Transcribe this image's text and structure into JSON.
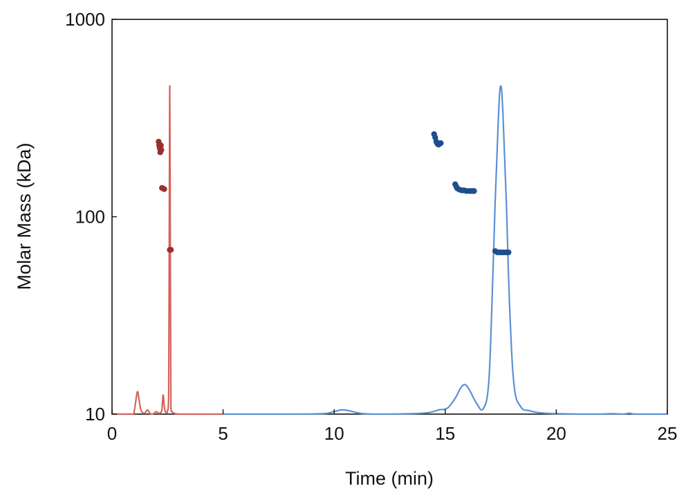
{
  "chart_data": {
    "type": "line",
    "xlabel": "Time (min)",
    "ylabel": "Molar Mass (kDa)",
    "xlim": [
      0,
      25
    ],
    "ylim": [
      10,
      1000
    ],
    "yscale": "log",
    "grid": false,
    "legend": "none",
    "x_ticks": [
      0,
      5,
      10,
      15,
      20,
      25
    ],
    "x_tick_labels": [
      "0",
      "5",
      "10",
      "15",
      "20",
      "25"
    ],
    "y_ticks": [
      10,
      100,
      1000
    ],
    "y_tick_labels": [
      "10",
      "100",
      "1000"
    ],
    "series": [
      {
        "kind": "trace",
        "color": "#d4625c",
        "x": [
          0,
          0.9,
          1.0,
          1.1,
          1.15,
          1.2,
          1.3,
          1.45,
          1.6,
          1.7,
          1.8,
          1.9,
          2.0,
          2.1,
          2.2,
          2.25,
          2.3,
          2.35,
          2.4,
          2.45,
          2.5,
          2.55,
          2.58,
          2.6,
          2.62,
          2.65,
          2.7,
          2.8,
          3.0,
          3.5,
          4.0,
          5.0
        ],
        "y": [
          10,
          10,
          10.4,
          12.3,
          13.0,
          12.2,
          10.5,
          10.1,
          10.5,
          10.1,
          10.0,
          10.1,
          10.3,
          10.1,
          10.2,
          10.6,
          12.5,
          11.0,
          10.3,
          10.2,
          10.4,
          12.5,
          110,
          460,
          110,
          11.0,
          10.3,
          10.1,
          10.0,
          10.0,
          10.0,
          10.0
        ]
      },
      {
        "kind": "trace",
        "color": "#5b8fd4",
        "x": [
          5,
          8,
          9.5,
          10,
          10.3,
          10.6,
          10.9,
          11.3,
          12,
          13.5,
          14.3,
          14.7,
          15.0,
          15.2,
          15.5,
          15.7,
          15.9,
          16.1,
          16.4,
          16.7,
          16.95,
          17.1,
          17.25,
          17.4,
          17.5,
          17.6,
          17.75,
          17.9,
          18.1,
          18.4,
          18.8,
          19.5,
          21,
          22,
          22.5,
          23,
          23.3,
          23.6,
          25
        ],
        "y": [
          10,
          10,
          10.05,
          10.3,
          10.5,
          10.45,
          10.25,
          10.05,
          10,
          10.05,
          10.2,
          10.5,
          10.6,
          11.0,
          12.3,
          13.6,
          14.1,
          13.2,
          11.4,
          10.6,
          14.0,
          35,
          120,
          330,
          460,
          330,
          120,
          35,
          14,
          10.9,
          10.4,
          10.1,
          10,
          10,
          10.05,
          10,
          10.1,
          10,
          10
        ]
      },
      {
        "kind": "molar_mass",
        "color": "#9b2f2d",
        "points": [
          [
            2.1,
            240
          ],
          [
            2.12,
            230
          ],
          [
            2.15,
            222
          ],
          [
            2.17,
            212
          ],
          [
            2.2,
            230
          ],
          [
            2.22,
            218
          ],
          [
            2.25,
            140
          ],
          [
            2.3,
            139
          ],
          [
            2.35,
            138
          ],
          [
            2.6,
            68
          ],
          [
            2.65,
            68
          ]
        ]
      },
      {
        "kind": "molar_mass",
        "color": "#1f4f8a",
        "points": [
          [
            14.5,
            262
          ],
          [
            14.55,
            252
          ],
          [
            14.6,
            240
          ],
          [
            14.65,
            234
          ],
          [
            14.7,
            232
          ],
          [
            14.75,
            234
          ],
          [
            14.8,
            236
          ],
          [
            15.45,
            146
          ],
          [
            15.5,
            142
          ],
          [
            15.55,
            139
          ],
          [
            15.65,
            137
          ],
          [
            15.75,
            136
          ],
          [
            15.85,
            136
          ],
          [
            15.95,
            135
          ],
          [
            16.05,
            135
          ],
          [
            16.15,
            135
          ],
          [
            16.25,
            135
          ],
          [
            16.3,
            135
          ],
          [
            17.25,
            67
          ],
          [
            17.35,
            66
          ],
          [
            17.45,
            66
          ],
          [
            17.55,
            66
          ],
          [
            17.65,
            66
          ],
          [
            17.75,
            66
          ],
          [
            17.85,
            66
          ]
        ]
      }
    ]
  }
}
